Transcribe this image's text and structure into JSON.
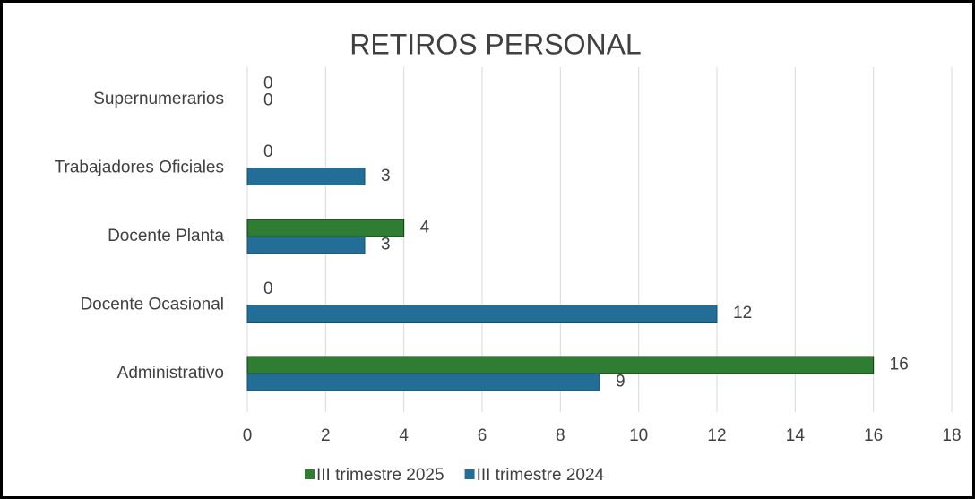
{
  "chart_data": {
    "type": "hbar",
    "title": "RETIROS PERSONAL",
    "categories": [
      "Supernumerarios",
      "Trabajadores Oficiales",
      "Docente Planta",
      "Docente Ocasional",
      "Administrativo"
    ],
    "series": [
      {
        "name": "III trimestre 2025",
        "color": "#2e7d32",
        "values": [
          0,
          0,
          4,
          0,
          16
        ]
      },
      {
        "name": "III trimestre 2024",
        "color": "#236e96",
        "values": [
          0,
          3,
          3,
          12,
          9
        ]
      }
    ],
    "xlim": [
      0,
      18
    ],
    "xticks": [
      0,
      2,
      4,
      6,
      8,
      10,
      12,
      14,
      16,
      18
    ],
    "grid": true,
    "legend": "bottom"
  }
}
